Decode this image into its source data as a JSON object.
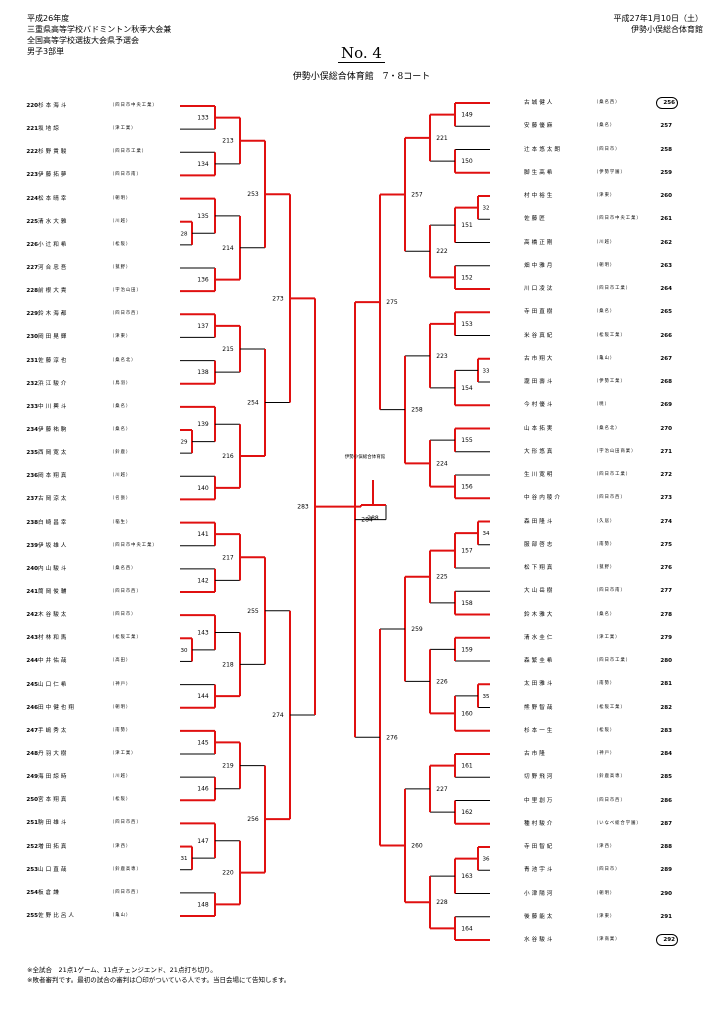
{
  "header": {
    "left_lines": [
      "平成26年度",
      "三重県高等学校バドミントン秋季大会兼",
      "全国高等学校選抜大会県予選会",
      "男子3部単"
    ],
    "right_lines": [
      "平成27年1月10日（土）",
      "伊勢小俣総合体育館"
    ]
  },
  "doc_number": "No. 4",
  "venue": "伊勢小俣総合体育館　7・8コート",
  "center_label": "伊勢小俣総合体育館",
  "notes": [
    "※全試合　21点1ゲーム、11点チェンジエンド、21点打ち切り。",
    "※敗者審判です。最初の試合の審判は〇印がついている人です。当日会場にて告知します。"
  ],
  "left_players": [
    {
      "num": "220",
      "name": "杉本海斗",
      "school": "四日市中央工業"
    },
    {
      "num": "221",
      "name": "坂地諒",
      "school": "津工業"
    },
    {
      "num": "222",
      "name": "杉野貴駿",
      "school": "四日市工業"
    },
    {
      "num": "223",
      "name": "伊藤拓夢",
      "school": "四日市南"
    },
    {
      "num": "224",
      "name": "松本晴幸",
      "school": "朝明"
    },
    {
      "num": "225",
      "name": "清水大雅",
      "school": "川越"
    },
    {
      "num": "226",
      "name": "小辻和希",
      "school": "松阪"
    },
    {
      "num": "227",
      "name": "河合忠吾",
      "school": "菰野"
    },
    {
      "num": "228",
      "name": "前根大貴",
      "school": "宇治山田"
    },
    {
      "num": "229",
      "name": "鈴木海都",
      "school": "四日市西"
    },
    {
      "num": "230",
      "name": "岡田晃輝",
      "school": "津東"
    },
    {
      "num": "231",
      "name": "佐藤淳也",
      "school": "桑名北"
    },
    {
      "num": "232",
      "name": "浜江駿介",
      "school": "鳥羽"
    },
    {
      "num": "233",
      "name": "中川輿斗",
      "school": "桑名"
    },
    {
      "num": "234",
      "name": "伊藤祐駒",
      "school": "桑名"
    },
    {
      "num": "235",
      "name": "西岡寛太",
      "school": "鈴鹿"
    },
    {
      "num": "236",
      "name": "岡本翔真",
      "school": "川越"
    },
    {
      "num": "237",
      "name": "古岡涼太",
      "school": "名張"
    },
    {
      "num": "238",
      "name": "白崎昌幸",
      "school": "稲生"
    },
    {
      "num": "239",
      "name": "伊坂雄人",
      "school": "四日市中央工業"
    },
    {
      "num": "240",
      "name": "内山駿斗",
      "school": "桑名西"
    },
    {
      "num": "241",
      "name": "筒岡俊輔",
      "school": "四日市西"
    },
    {
      "num": "242",
      "name": "木谷駿太",
      "school": "四日市"
    },
    {
      "num": "243",
      "name": "村林和馬",
      "school": "松阪工業"
    },
    {
      "num": "244",
      "name": "中井佑哉",
      "school": "高田"
    },
    {
      "num": "245",
      "name": "山口仁希",
      "school": "神戸"
    },
    {
      "num": "246",
      "name": "田中健也翔",
      "school": "朝明"
    },
    {
      "num": "247",
      "name": "手嶋秀太",
      "school": "南勢"
    },
    {
      "num": "248",
      "name": "丹羽大樹",
      "school": "津工業"
    },
    {
      "num": "249",
      "name": "海田諒時",
      "school": "川越"
    },
    {
      "num": "250",
      "name": "宮本翔真",
      "school": "松阪"
    },
    {
      "num": "251",
      "name": "駒田雄斗",
      "school": "四日市西"
    },
    {
      "num": "252",
      "name": "増田拓真",
      "school": "津西"
    },
    {
      "num": "253",
      "name": "山口直哉",
      "school": "鈴鹿高専"
    },
    {
      "num": "254",
      "name": "板倉謙",
      "school": "四日市西"
    },
    {
      "num": "255",
      "name": "佐野比呂人",
      "school": "亀山"
    }
  ],
  "right_players": [
    {
      "num": "256",
      "name": "古城健人",
      "school": "桑名西",
      "circled": true
    },
    {
      "num": "257",
      "name": "安藤優麻",
      "school": "桑名"
    },
    {
      "num": "258",
      "name": "辻本悠太朗",
      "school": "四日市"
    },
    {
      "num": "259",
      "name": "脚生高希",
      "school": "伊勢学園"
    },
    {
      "num": "260",
      "name": "村中裕生",
      "school": "津東"
    },
    {
      "num": "261",
      "name": "佐藤匠",
      "school": "四日市中央工業"
    },
    {
      "num": "262",
      "name": "高橋正剛",
      "school": "川越"
    },
    {
      "num": "263",
      "name": "畑中雅月",
      "school": "朝明"
    },
    {
      "num": "264",
      "name": "川口凌汰",
      "school": "四日市工業"
    },
    {
      "num": "265",
      "name": "寺田直樹",
      "school": "桑名"
    },
    {
      "num": "266",
      "name": "米谷真紀",
      "school": "松阪工業"
    },
    {
      "num": "267",
      "name": "古市翔大",
      "school": "亀山"
    },
    {
      "num": "268",
      "name": "瀧田壽斗",
      "school": "伊勢工業"
    },
    {
      "num": "269",
      "name": "今村優斗",
      "school": "暁"
    },
    {
      "num": "270",
      "name": "山本拓実",
      "school": "桑名北"
    },
    {
      "num": "271",
      "name": "大形悠真",
      "school": "宇治山田商業"
    },
    {
      "num": "272",
      "name": "生川寛明",
      "school": "四日市工業"
    },
    {
      "num": "273",
      "name": "中谷内稜介",
      "school": "四日市西"
    },
    {
      "num": "274",
      "name": "森田隆斗",
      "school": "久居"
    },
    {
      "num": "275",
      "name": "服部啓志",
      "school": "南勢"
    },
    {
      "num": "276",
      "name": "松下翔真",
      "school": "菰野"
    },
    {
      "num": "277",
      "name": "大山岳樹",
      "school": "四日市南"
    },
    {
      "num": "278",
      "name": "鈴木雅大",
      "school": "桑名"
    },
    {
      "num": "279",
      "name": "清水圭仁",
      "school": "津工業"
    },
    {
      "num": "280",
      "name": "森繁圭希",
      "school": "四日市工業"
    },
    {
      "num": "281",
      "name": "太田雅斗",
      "school": "南勢"
    },
    {
      "num": "282",
      "name": "熊野智哉",
      "school": "松阪工業"
    },
    {
      "num": "283",
      "name": "杉本一生",
      "school": "松阪"
    },
    {
      "num": "284",
      "name": "古市隆",
      "school": "神戸"
    },
    {
      "num": "285",
      "name": "切野飛河",
      "school": "鈴鹿高専"
    },
    {
      "num": "286",
      "name": "中里創万",
      "school": "四日市西"
    },
    {
      "num": "287",
      "name": "種村駿介",
      "school": "いなべ総合学園"
    },
    {
      "num": "288",
      "name": "寺田智紀",
      "school": "津西"
    },
    {
      "num": "289",
      "name": "青池宇斗",
      "school": "四日市"
    },
    {
      "num": "290",
      "name": "小津陽河",
      "school": "朝明"
    },
    {
      "num": "291",
      "name": "後藤能太",
      "school": "津東"
    },
    {
      "num": "292",
      "name": "水谷駿斗",
      "school": "津商業",
      "circled": true
    }
  ],
  "match_numbers_left": {
    "r1": [
      "28",
      "29",
      "30",
      "31"
    ],
    "r2": [
      "133",
      "134",
      "135",
      "136",
      "137",
      "138",
      "139",
      "140",
      "141",
      "142",
      "143",
      "144",
      "145",
      "146",
      "147",
      "148"
    ],
    "r3": [
      "213",
      "214",
      "215",
      "216",
      "217",
      "218",
      "219",
      "220"
    ],
    "r4": [
      "253",
      "254",
      "255",
      "256"
    ],
    "r5": [
      "273",
      "274"
    ],
    "r6": [
      "283"
    ]
  },
  "match_numbers_right": {
    "r1": [
      "32",
      "33",
      "34",
      "35",
      "36"
    ],
    "r2": [
      "149",
      "150",
      "151",
      "152",
      "153",
      "154",
      "155",
      "156",
      "157",
      "158",
      "159",
      "160",
      "161",
      "162",
      "163",
      "164"
    ],
    "r3": [
      "221",
      "222",
      "223",
      "224",
      "225",
      "226",
      "227",
      "228"
    ],
    "r4": [
      "257",
      "258",
      "259",
      "260"
    ],
    "r5": [
      "275",
      "276"
    ],
    "r6": [
      "284"
    ]
  },
  "final_number": "288",
  "colors": {
    "win_line": "#e01010",
    "line": "#000000"
  }
}
